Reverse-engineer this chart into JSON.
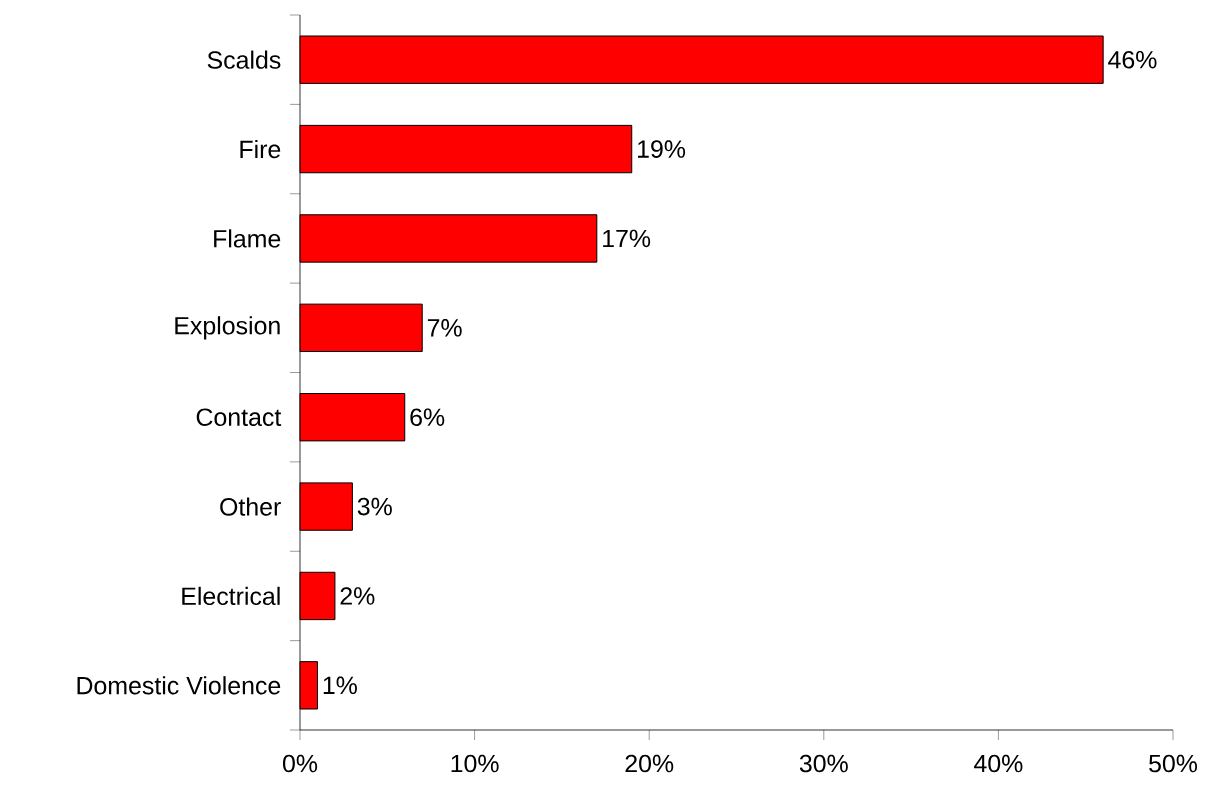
{
  "chart_data": {
    "type": "bar",
    "orientation": "horizontal",
    "categories": [
      "Scalds",
      "Fire",
      "Flame",
      "Explosion",
      "Contact",
      "Other",
      "Electrical",
      "Domestic Violence"
    ],
    "values": [
      46,
      19,
      17,
      7,
      6,
      3,
      2,
      1
    ],
    "value_labels": [
      "46%",
      "19%",
      "17%",
      "7%",
      "6%",
      "3%",
      "2%",
      "1%"
    ],
    "color": "#ff0000",
    "xlim": [
      0,
      50
    ],
    "xticks": [
      {
        "value": 0,
        "label": "0%"
      },
      {
        "value": 10,
        "label": "10%"
      },
      {
        "value": 20,
        "label": "20%"
      },
      {
        "value": 30,
        "label": "30%"
      },
      {
        "value": 40,
        "label": "40%"
      },
      {
        "value": 50,
        "label": "50%"
      }
    ],
    "grid": false
  }
}
